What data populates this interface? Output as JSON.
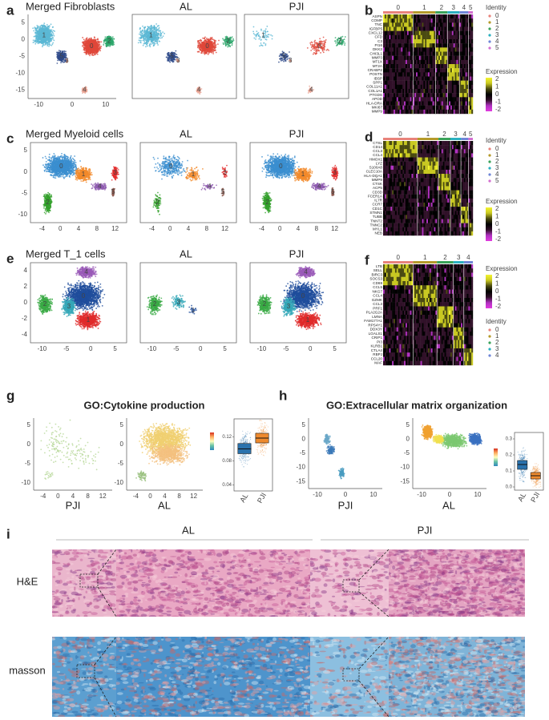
{
  "a": {
    "letter": "a",
    "title": "Merged Fibroblasts",
    "al": "AL",
    "pji": "PJI",
    "xticks": [
      -10,
      0,
      10
    ],
    "yticks": [
      5,
      0,
      -5,
      -10,
      -15
    ],
    "clusters": [
      "0",
      "1",
      "2",
      "3",
      "4",
      "5"
    ]
  },
  "b": {
    "letter": "b",
    "columns": [
      "0",
      "1",
      "2",
      "3",
      "4",
      "5"
    ],
    "genes": [
      "ASPN",
      "COMP",
      "TNC",
      "IGFBP5",
      "CXCL12",
      "CFD",
      "C3",
      "PI16",
      "DKK3",
      "CHI3L1",
      "MMP3",
      "MT1X",
      "MT2A",
      "CRABP2",
      "POSTN",
      "IBSP",
      "SPP1",
      "COL11A1",
      "COL1A1",
      "PTGDS",
      "APOD",
      "HLA-DRA",
      "MKI67",
      "MMP9"
    ],
    "identity_title": "Identity",
    "identity": [
      "0",
      "1",
      "2",
      "3",
      "4",
      "5"
    ],
    "expression_title": "Expression",
    "expression_ticks": [
      2,
      1,
      0,
      -1,
      -2
    ]
  },
  "c": {
    "letter": "c",
    "title": "Merged Myeloid cells",
    "al": "AL",
    "pji": "PJI",
    "xticks": [
      -4,
      0,
      4,
      8,
      12
    ],
    "yticks": [
      5,
      0,
      -5,
      -10
    ],
    "clusters": [
      "0",
      "1",
      "2",
      "3",
      "4",
      "5"
    ]
  },
  "d": {
    "letter": "d",
    "columns": [
      "0",
      "1",
      "2",
      "3",
      "4",
      "5"
    ],
    "genes": [
      "CTSL",
      "CD14",
      "CCL3",
      "CCL4",
      "HMOX1",
      "LYZ",
      "S100A8",
      "CLEC10A",
      "HLA-DQA1",
      "MMP9",
      "CTSK",
      "ACP5",
      "CD3D",
      "FCER1A",
      "IL7R",
      "CCR7",
      "CD1C",
      "STMN1",
      "TUBB",
      "TNNT2",
      "TNNC2",
      "MYL1",
      "NEB"
    ],
    "identity_title": "Identity",
    "identity": [
      "0",
      "1",
      "2",
      "3",
      "4",
      "5"
    ],
    "expression_title": "Expression",
    "expression_ticks": [
      2,
      1,
      0,
      -1,
      -2
    ]
  },
  "e": {
    "letter": "e",
    "title": "Merged T_1 cells",
    "al": "AL",
    "pji": "PJI",
    "xticks": [
      -10,
      -5,
      0,
      5
    ],
    "yticks": [
      4,
      2,
      0,
      -2,
      -4
    ],
    "clusters": [
      "0",
      "1",
      "2",
      "3",
      "4"
    ]
  },
  "f": {
    "letter": "f",
    "columns": [
      "0",
      "1",
      "2",
      "3",
      "4"
    ],
    "genes": [
      "LTB",
      "SELL",
      "BIRC3",
      "SOCS3",
      "CD69",
      "CCL5",
      "NKG7",
      "CCL4",
      "GZMK",
      "CCL3",
      "PRF1",
      "PLA2G2A",
      "LMNA",
      "FAM177A1",
      "RPS4Y1",
      "DDX3Y",
      "LGALS1",
      "CRIP1",
      "PI3",
      "KLRB1",
      "CTLA4",
      "RBPJ",
      "CCL20",
      "MAF"
    ],
    "identity_title": "Identity",
    "identity": [
      "0",
      "1",
      "2",
      "3",
      "4"
    ],
    "expression_title": "Expression",
    "expression_ticks": [
      2,
      1,
      0,
      -1,
      -2
    ]
  },
  "g": {
    "letter": "g",
    "title": "GO:Cytokine production",
    "pji": "PJI",
    "al": "AL",
    "xticks": [
      -4,
      0,
      4,
      8,
      12
    ],
    "yticks": [
      5,
      0,
      -5,
      -10
    ],
    "al_yticks": [
      5,
      0,
      -5,
      -10
    ]
  },
  "g_box": {
    "categories": [
      "AL",
      "PJI"
    ],
    "colors": [
      "#2a72ad",
      "#ee8a2e"
    ],
    "q1": [
      0.092,
      0.11
    ],
    "median": [
      0.1,
      0.118
    ],
    "q3": [
      0.109,
      0.126
    ],
    "ylim": [
      0.03,
      0.15
    ],
    "yticks": [
      0.04,
      0.08,
      0.12
    ]
  },
  "h": {
    "letter": "h",
    "title": "GO:Extracellular matrix organization",
    "pji": "PJI",
    "al": "AL",
    "xticks": [
      -10,
      0,
      10
    ],
    "yticks": [
      5,
      0,
      -5,
      -10,
      -15
    ],
    "al_xticks": [
      -10,
      0,
      10
    ],
    "al_yticks": [
      5,
      0,
      -5,
      -10,
      -15
    ]
  },
  "h_box": {
    "categories": [
      "AL",
      "PJI"
    ],
    "colors": [
      "#2a72ad",
      "#ee8a2e"
    ],
    "q1": [
      0.11,
      0.05
    ],
    "median": [
      0.14,
      0.07
    ],
    "q3": [
      0.165,
      0.09
    ],
    "ylim": [
      -0.02,
      0.34
    ],
    "yticks": [
      {
        "value": 0,
        "label": "0.0"
      },
      0.1,
      0.2,
      0.3
    ]
  },
  "i": {
    "letter": "i",
    "al": "AL",
    "pji": "PJI",
    "he": "H&E",
    "masson": "masson"
  }
}
